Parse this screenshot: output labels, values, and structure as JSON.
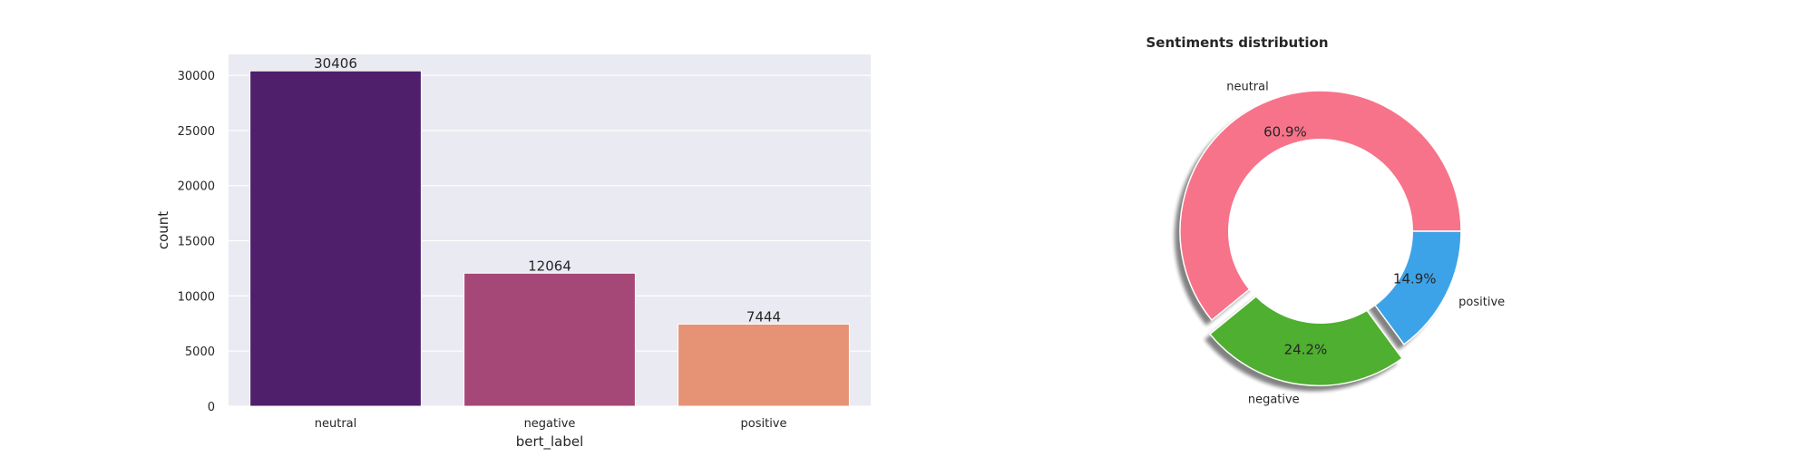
{
  "chart_data": [
    {
      "type": "bar",
      "title": "",
      "xlabel": "bert_label",
      "ylabel": "count",
      "categories": [
        "neutral",
        "negative",
        "positive"
      ],
      "values": [
        30406,
        12064,
        7444
      ],
      "data_labels": [
        "30406",
        "12064",
        "7444"
      ],
      "ylim": [
        0,
        31900
      ],
      "yticks": [
        0,
        5000,
        10000,
        15000,
        20000,
        25000,
        30000
      ],
      "colors": [
        "#4f1f6b",
        "#a54777",
        "#e69275"
      ],
      "background": "#eaeaf2",
      "grid": true,
      "legend": "none"
    },
    {
      "type": "pie",
      "style": "donut",
      "title": "Sentiments distribution",
      "labels": [
        "neutral",
        "negative",
        "positive"
      ],
      "values": [
        60.9,
        24.2,
        14.9
      ],
      "pct_labels": [
        "60.9%",
        "24.2%",
        "14.9%"
      ],
      "colors": [
        "#f7738a",
        "#4faf30",
        "#3da3e8"
      ],
      "explode": [
        0,
        0.1,
        0
      ],
      "shadow": true,
      "legend": "none"
    }
  ]
}
